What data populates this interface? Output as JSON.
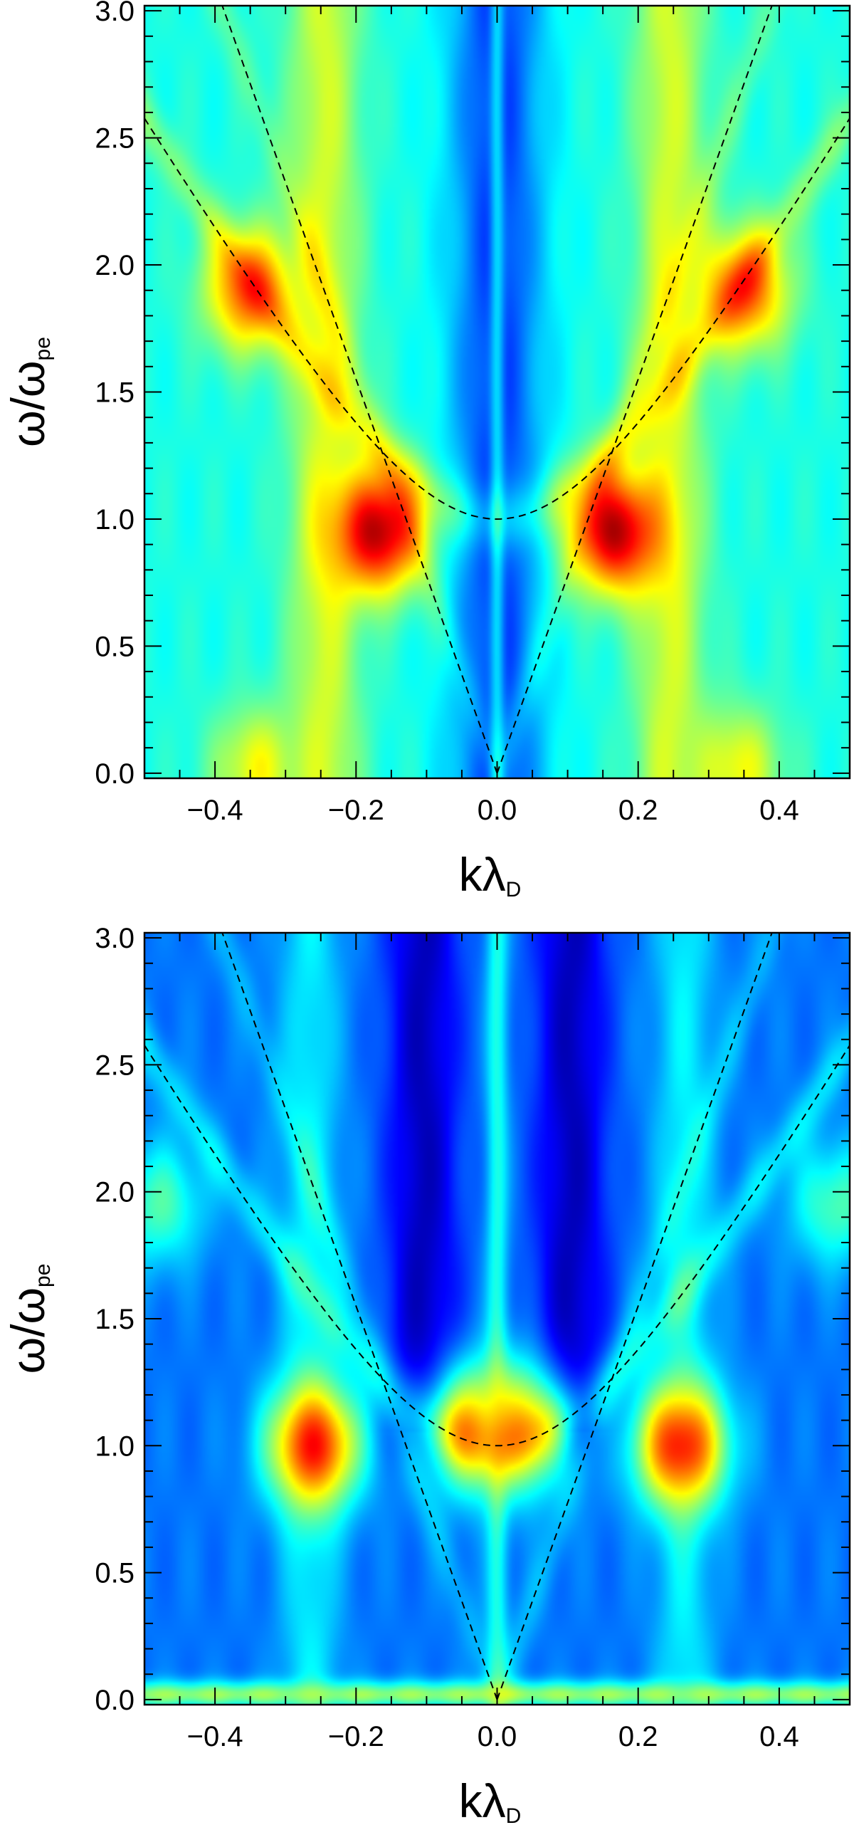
{
  "chart_data": [
    {
      "type": "heatmap",
      "title": "",
      "xlabel": "kλ",
      "xlabel_subscript": "D",
      "ylabel": "ω/ω",
      "ylabel_subscript": "pe",
      "xlim": [
        -0.5,
        0.5
      ],
      "ylim": [
        -0.02,
        3.02
      ],
      "xticks": [
        -0.4,
        -0.2,
        0.0,
        0.2,
        0.4
      ],
      "xtick_labels": [
        "−0.4",
        "−0.2",
        "0.0",
        "0.2",
        "0.4"
      ],
      "yticks": [
        0.0,
        0.5,
        1.0,
        1.5,
        2.0,
        2.5,
        3.0
      ],
      "ytick_labels": [
        "0.0",
        "0.5",
        "1.0",
        "1.5",
        "2.0",
        "2.5",
        "3.0"
      ],
      "colormap": "jet",
      "background_level": 0.4,
      "dispersion_curves": {
        "plasma_branch": {
          "formula": "w = sqrt(1 + 3 k^2 / 0.133)",
          "style": "dashed"
        },
        "light_lines": {
          "slope": 7.75,
          "style": "dashed"
        }
      },
      "features": [
        {
          "name": "central low band",
          "k": 0.0,
          "k_width": 0.075,
          "w_from": 0.0,
          "w_to": 3.0,
          "level": 0.18
        },
        {
          "name": "central thin line",
          "k": 0.0,
          "k_width": 0.012,
          "w_from": 0.0,
          "w_to": 3.0,
          "level": 0.34
        },
        {
          "name": "yellow stripe left",
          "k": -0.245,
          "k_width": 0.06,
          "w_from": 0.0,
          "w_to": 3.0,
          "level": 0.58
        },
        {
          "name": "yellow stripe right",
          "k": 0.245,
          "k_width": 0.06,
          "w_from": 0.0,
          "w_to": 3.0,
          "level": 0.58
        },
        {
          "name": "peak left",
          "k": -0.17,
          "w": 0.95,
          "level": 0.95
        },
        {
          "name": "peak right",
          "k": 0.17,
          "w": 0.95,
          "level": 0.95
        },
        {
          "name": "upper blob left",
          "k": -0.35,
          "w": 1.9,
          "level": 0.78
        },
        {
          "name": "upper blob right",
          "k": 0.35,
          "w": 1.9,
          "level": 0.78
        },
        {
          "name": "bottom spot left",
          "k": -0.34,
          "w": 0.02,
          "level": 0.62
        },
        {
          "name": "bottom spot right",
          "k": 0.34,
          "w": 0.02,
          "level": 0.62
        }
      ]
    },
    {
      "type": "heatmap",
      "title": "",
      "xlabel": "kλ",
      "xlabel_subscript": "D",
      "ylabel": "ω/ω",
      "ylabel_subscript": "pe",
      "xlim": [
        -0.5,
        0.5
      ],
      "ylim": [
        -0.02,
        3.02
      ],
      "xticks": [
        -0.4,
        -0.2,
        0.0,
        0.2,
        0.4
      ],
      "xtick_labels": [
        "−0.4",
        "−0.2",
        "0.0",
        "0.2",
        "0.4"
      ],
      "yticks": [
        0.0,
        0.5,
        1.0,
        1.5,
        2.0,
        2.5,
        3.0
      ],
      "ytick_labels": [
        "0.0",
        "0.5",
        "1.0",
        "1.5",
        "2.0",
        "2.5",
        "3.0"
      ],
      "colormap": "jet",
      "background_level": 0.24,
      "dispersion_curves": {
        "plasma_branch": {
          "formula": "w = sqrt(1 + 3 k^2 / 0.133)",
          "style": "dashed"
        },
        "light_lines": {
          "slope": 7.75,
          "style": "dashed"
        }
      },
      "features": [
        {
          "name": "dark band left",
          "k": -0.105,
          "k_width": 0.06,
          "w_from": 1.1,
          "w_to": 3.0,
          "level": 0.06
        },
        {
          "name": "dark band right",
          "k": 0.105,
          "k_width": 0.06,
          "w_from": 1.1,
          "w_to": 3.0,
          "level": 0.06
        },
        {
          "name": "central line",
          "k": 0.0,
          "k_width": 0.018,
          "w_from": 0.0,
          "w_to": 3.0,
          "level": 0.4
        },
        {
          "name": "cyan stripe left",
          "k": -0.265,
          "k_width": 0.05,
          "w_from": 0.0,
          "w_to": 3.0,
          "level": 0.36
        },
        {
          "name": "cyan stripe right",
          "k": 0.265,
          "k_width": 0.05,
          "w_from": 0.0,
          "w_to": 3.0,
          "level": 0.36
        },
        {
          "name": "bottom band",
          "w": 0.02,
          "w_width": 0.06,
          "level": 0.52
        },
        {
          "name": "peak left",
          "k": -0.26,
          "w": 1.0,
          "level": 0.86
        },
        {
          "name": "peak right",
          "k": 0.26,
          "w": 1.0,
          "level": 0.86
        },
        {
          "name": "small spot left",
          "k": -0.035,
          "w": 1.07,
          "level": 0.66
        },
        {
          "name": "small spot right",
          "k": 0.035,
          "w": 1.07,
          "level": 0.66
        },
        {
          "name": "edge blob left",
          "k": -0.48,
          "w": 1.95,
          "level": 0.45
        },
        {
          "name": "edge blob right",
          "k": 0.48,
          "w": 1.95,
          "level": 0.45
        }
      ]
    }
  ]
}
